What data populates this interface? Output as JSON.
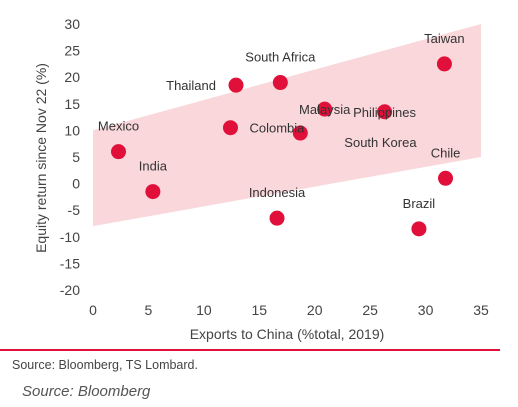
{
  "colors": {
    "accent": "#e0103a",
    "band": "#f9d7da",
    "text": "#333333"
  },
  "chart_data": {
    "type": "scatter",
    "xlabel": "Exports to China (%total, 2019)",
    "ylabel": "Equity return since Nov 22 (%)",
    "xlim": [
      0,
      35
    ],
    "ylim": [
      -20,
      30
    ],
    "xticks": [
      0,
      5,
      10,
      15,
      20,
      25,
      30,
      35
    ],
    "yticks": [
      30,
      25,
      20,
      15,
      10,
      5,
      0,
      -5,
      -10,
      -15,
      -20
    ],
    "grid": false,
    "band": {
      "x": [
        0,
        35
      ],
      "lower": [
        -8,
        5
      ],
      "upper": [
        10,
        30
      ]
    },
    "points": [
      {
        "label": "Mexico",
        "x": 2.3,
        "y": 6
      },
      {
        "label": "India",
        "x": 5.4,
        "y": -1.5
      },
      {
        "label": "Thailand",
        "x": 12.9,
        "y": 18.5
      },
      {
        "label": "Colombia",
        "x": 12.4,
        "y": 10.5
      },
      {
        "label": "South Africa",
        "x": 16.9,
        "y": 19
      },
      {
        "label": "Malaysia",
        "x": 20.9,
        "y": 14
      },
      {
        "label": "Indonesia",
        "x": 16.6,
        "y": -6.5
      },
      {
        "label": "Philippines",
        "x": 26.3,
        "y": 13.5
      },
      {
        "label": "South Korea",
        "x": 18.7,
        "y": 9.5
      },
      {
        "label": "Taiwan",
        "x": 31.7,
        "y": 22.5
      },
      {
        "label": "Chile",
        "x": 31.8,
        "y": 1
      },
      {
        "label": "Brazil",
        "x": 29.4,
        "y": -8.5
      }
    ]
  },
  "footer": {
    "source": "Source: Bloomberg, TS Lombard.",
    "caption": "Source: Bloomberg"
  }
}
